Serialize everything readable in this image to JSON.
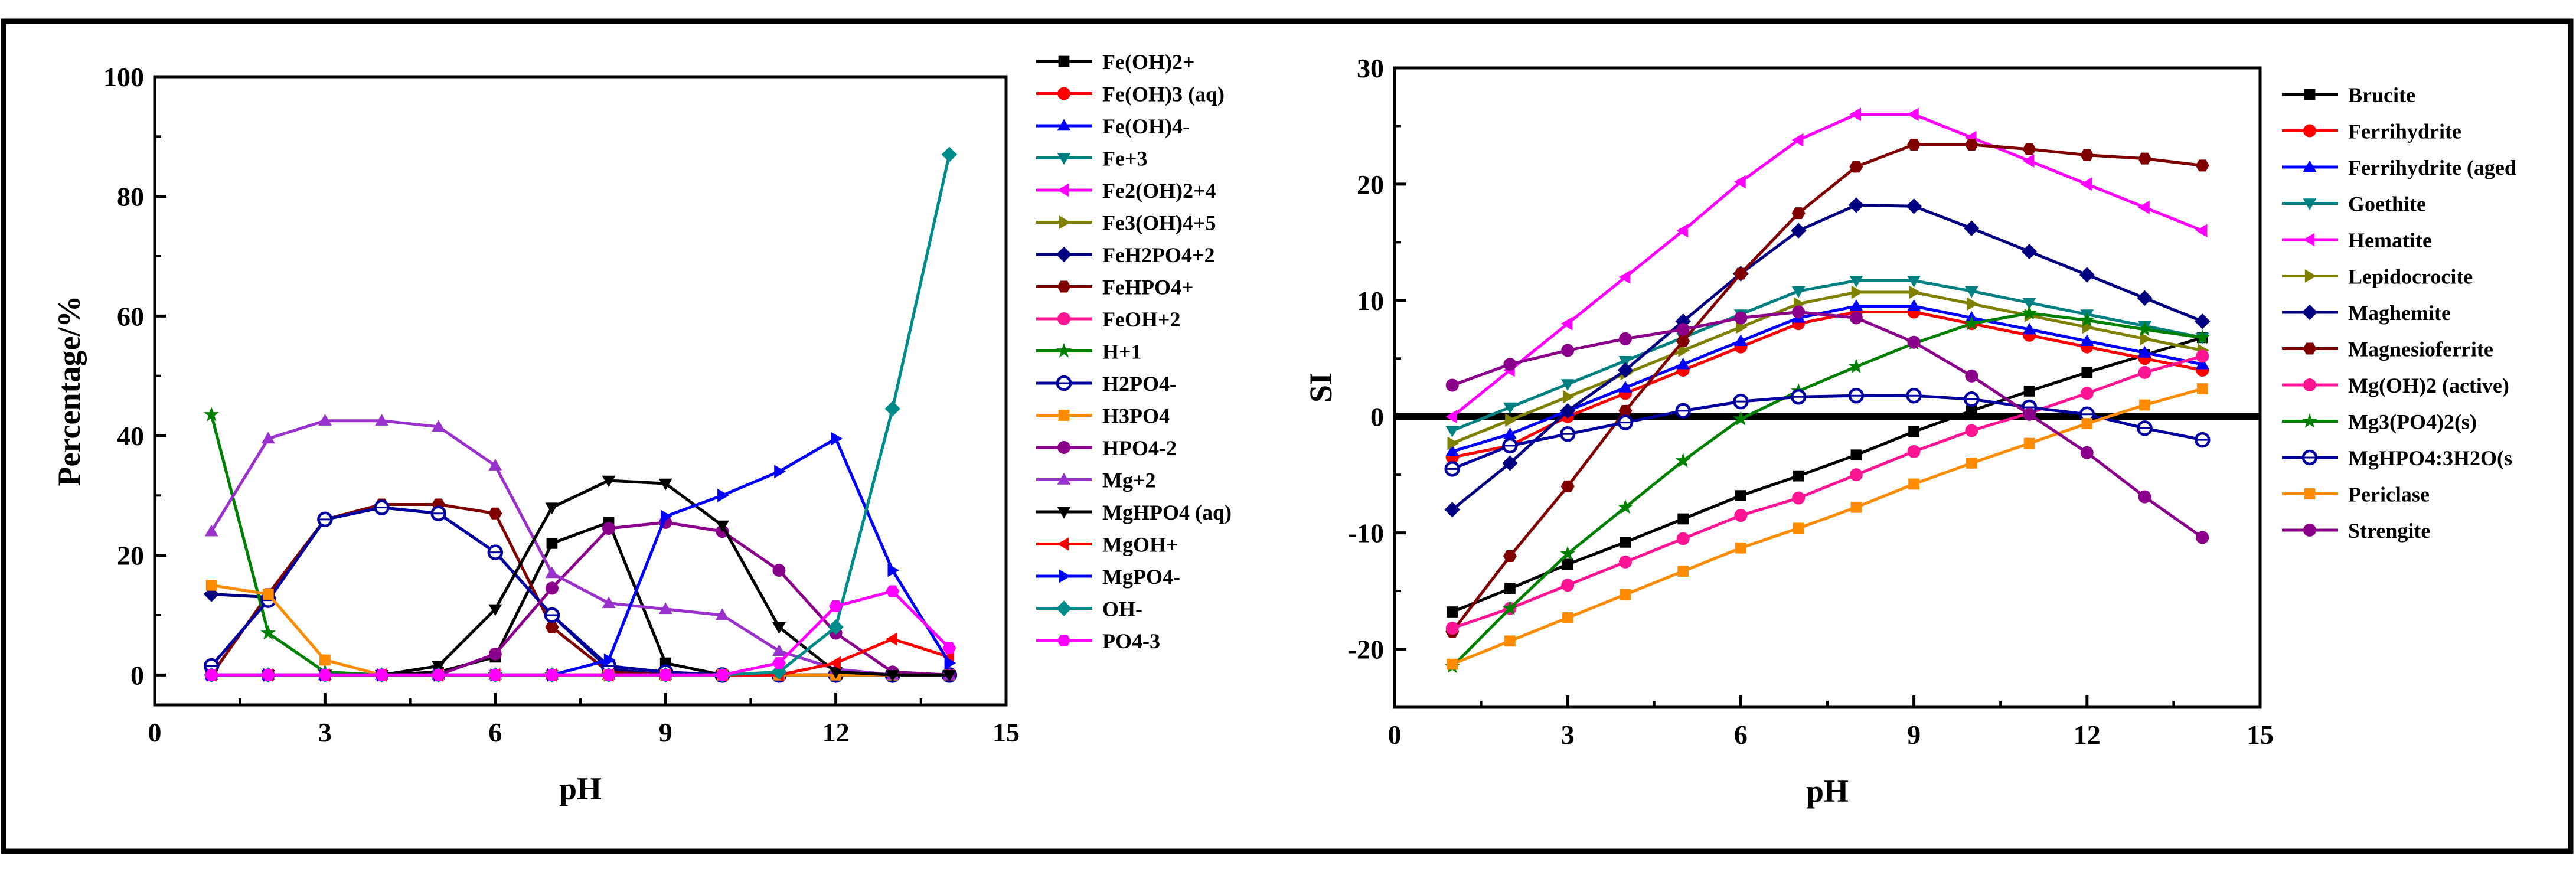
{
  "chart_data": [
    {
      "type": "line",
      "xlabel": "pH",
      "ylabel": "Percentage/%",
      "xlim": [
        0,
        15
      ],
      "ylim": [
        -5,
        100
      ],
      "xticks": [
        "0",
        "3",
        "6",
        "9",
        "12",
        "15"
      ],
      "yticks": [
        "0",
        "20",
        "40",
        "60",
        "80",
        "100"
      ],
      "x": [
        1,
        2,
        3,
        4,
        5,
        6,
        7,
        8,
        9,
        10,
        11,
        12,
        13,
        14
      ],
      "legend_position": "right",
      "series": [
        {
          "name": "Fe(OH)2+",
          "color": "#000000",
          "marker": "square",
          "values": [
            0,
            0,
            0,
            0,
            0.5,
            3,
            22,
            25.5,
            2,
            0,
            0,
            0,
            0,
            0
          ]
        },
        {
          "name": "Fe(OH)3 (aq)",
          "color": "#ff0000",
          "marker": "circle",
          "values": [
            0,
            0,
            0,
            0,
            0,
            0,
            0,
            0,
            0,
            0,
            0,
            0,
            0,
            0
          ]
        },
        {
          "name": "Fe(OH)4-",
          "color": "#0000ff",
          "marker": "triangle-up",
          "values": [
            0,
            0,
            0,
            0,
            0,
            0,
            0,
            0,
            0,
            0,
            0,
            0,
            0,
            0
          ]
        },
        {
          "name": "Fe+3",
          "color": "#008080",
          "marker": "triangle-down",
          "values": [
            0,
            0,
            0,
            0,
            0,
            0,
            0,
            0,
            0,
            0,
            0,
            0,
            0,
            0
          ]
        },
        {
          "name": "Fe2(OH)2+4",
          "color": "#ff00ff",
          "marker": "triangle-left",
          "values": [
            0,
            0,
            0,
            0,
            0,
            0,
            0,
            0,
            0,
            0,
            0,
            0,
            0,
            0
          ]
        },
        {
          "name": "Fe3(OH)4+5",
          "color": "#808000",
          "marker": "triangle-right",
          "values": [
            0,
            0,
            0,
            0,
            0,
            0,
            0,
            0,
            0,
            0,
            0,
            0,
            0,
            0
          ]
        },
        {
          "name": "FeH2PO4+2",
          "color": "#000080",
          "marker": "diamond",
          "values": [
            13.5,
            13,
            26,
            28,
            27,
            20.5,
            10,
            1,
            0,
            0,
            0,
            0,
            0,
            0
          ]
        },
        {
          "name": "FeHPO4+",
          "color": "#800000",
          "marker": "hexagon",
          "values": [
            0,
            13.5,
            26,
            28.5,
            28.5,
            27,
            8,
            0.5,
            0,
            0,
            0,
            0,
            0,
            0
          ]
        },
        {
          "name": "FeOH+2",
          "color": "#ff1493",
          "marker": "circle",
          "values": [
            0,
            0,
            0,
            0,
            0,
            0,
            0,
            0,
            0,
            0,
            0,
            0,
            0,
            0
          ]
        },
        {
          "name": "H+1",
          "color": "#008000",
          "marker": "star",
          "values": [
            43.5,
            7,
            0.5,
            0,
            0,
            0,
            0,
            0,
            0,
            0,
            0,
            0,
            0,
            0
          ]
        },
        {
          "name": "H2PO4-",
          "color": "#0000a0",
          "marker": "circle-open",
          "values": [
            1.5,
            12.5,
            26,
            28,
            27,
            20.5,
            10,
            1.5,
            0.5,
            0,
            0,
            0,
            0,
            0
          ]
        },
        {
          "name": "H3PO4",
          "color": "#ff8c00",
          "marker": "square",
          "values": [
            15,
            13.5,
            2.5,
            0,
            0,
            0,
            0,
            0,
            0,
            0,
            0,
            0,
            0,
            0
          ]
        },
        {
          "name": "HPO4-2",
          "color": "#8b008b",
          "marker": "circle",
          "values": [
            0,
            0,
            0,
            0,
            0,
            3.5,
            14.5,
            24.5,
            25.5,
            24,
            17.5,
            7,
            0.5,
            0
          ]
        },
        {
          "name": "Mg+2",
          "color": "#9932cc",
          "marker": "triangle-up",
          "values": [
            24,
            39.5,
            42.5,
            42.5,
            41.5,
            35,
            17,
            12,
            11,
            10,
            4,
            1,
            0,
            0
          ]
        },
        {
          "name": "MgHPO4 (aq)",
          "color": "#000000",
          "marker": "triangle-down",
          "values": [
            0,
            0,
            0,
            0,
            1.5,
            11,
            28,
            32.5,
            32,
            25,
            8,
            0.5,
            0,
            0
          ]
        },
        {
          "name": "MgOH+",
          "color": "#ff0000",
          "marker": "triangle-left",
          "values": [
            0,
            0,
            0,
            0,
            0,
            0,
            0,
            0,
            0,
            0,
            0,
            2,
            6,
            3
          ]
        },
        {
          "name": "MgPO4-",
          "color": "#0000ff",
          "marker": "triangle-right",
          "values": [
            0,
            0,
            0,
            0,
            0,
            0,
            0,
            2.5,
            26.5,
            30,
            34,
            39.5,
            17.5,
            2
          ]
        },
        {
          "name": "OH-",
          "color": "#008b8b",
          "marker": "diamond",
          "values": [
            0,
            0,
            0,
            0,
            0,
            0,
            0,
            0,
            0,
            0,
            0.5,
            8,
            44.5,
            87
          ]
        },
        {
          "name": "PO4-3",
          "color": "#ff00ff",
          "marker": "hexagon",
          "values": [
            0,
            0,
            0,
            0,
            0,
            0,
            0,
            0,
            0,
            0,
            2,
            11.5,
            14,
            4.5
          ]
        }
      ]
    },
    {
      "type": "line",
      "xlabel": "pH",
      "ylabel": "SI",
      "xlim": [
        0,
        15
      ],
      "ylim": [
        -25,
        30
      ],
      "xticks": [
        "0",
        "3",
        "6",
        "9",
        "12",
        "15"
      ],
      "yticks": [
        "-20",
        "-10",
        "0",
        "10",
        "20",
        "30"
      ],
      "reference_line_y": 0,
      "x": [
        1,
        2,
        3,
        4,
        5,
        6,
        7,
        8,
        9,
        10,
        11,
        12,
        13,
        14
      ],
      "legend_position": "right",
      "series": [
        {
          "name": "Brucite",
          "color": "#000000",
          "marker": "square",
          "values": [
            -16.8,
            -14.8,
            -12.7,
            -10.8,
            -8.8,
            -6.8,
            -5.1,
            -3.3,
            -1.3,
            0.5,
            2.2,
            3.8,
            5.3,
            6.8
          ]
        },
        {
          "name": "Ferrihydrite",
          "color": "#ff0000",
          "marker": "circle",
          "values": [
            -3.5,
            -2.5,
            0,
            2,
            4,
            6,
            8,
            9,
            9,
            8,
            7,
            6,
            5,
            4
          ]
        },
        {
          "name": "Ferrihydrite (aged",
          "color": "#0000ff",
          "marker": "triangle-up",
          "values": [
            -3,
            -1.5,
            0.5,
            2.5,
            4.5,
            6.5,
            8.5,
            9.5,
            9.5,
            8.5,
            7.5,
            6.5,
            5.5,
            4.5
          ]
        },
        {
          "name": "Goethite",
          "color": "#008080",
          "marker": "triangle-down",
          "values": [
            -1.2,
            0.8,
            2.8,
            4.8,
            6.8,
            8.8,
            10.8,
            11.7,
            11.7,
            10.8,
            9.8,
            8.8,
            7.8,
            6.8
          ]
        },
        {
          "name": "Hematite",
          "color": "#ff00ff",
          "marker": "triangle-left",
          "values": [
            0,
            4,
            8,
            12,
            16,
            20.2,
            23.8,
            26,
            26,
            24,
            22,
            20,
            18,
            16
          ]
        },
        {
          "name": "Lepidocrocite",
          "color": "#808000",
          "marker": "triangle-right",
          "values": [
            -2.3,
            -0.3,
            1.7,
            3.7,
            5.7,
            7.7,
            9.7,
            10.7,
            10.7,
            9.7,
            8.7,
            7.7,
            6.7,
            5.7
          ]
        },
        {
          "name": "Maghemite",
          "color": "#000080",
          "marker": "diamond",
          "values": [
            -8,
            -4,
            0.5,
            4,
            8.2,
            12.3,
            16,
            18.2,
            18.1,
            16.2,
            14.2,
            12.2,
            10.2,
            8.2
          ]
        },
        {
          "name": "Magnesioferrite",
          "color": "#800000",
          "marker": "hexagon",
          "values": [
            -18.5,
            -12,
            -6,
            0.5,
            6.5,
            12.3,
            17.5,
            21.5,
            23.4,
            23.4,
            23,
            22.5,
            22.2,
            21.6
          ]
        },
        {
          "name": "Mg(OH)2 (active)",
          "color": "#ff1493",
          "marker": "circle",
          "values": [
            -18.2,
            -16.5,
            -14.5,
            -12.5,
            -10.5,
            -8.5,
            -7,
            -5,
            -3,
            -1.2,
            0.3,
            2,
            3.8,
            5.2
          ]
        },
        {
          "name": "Mg3(PO4)2(s)",
          "color": "#008000",
          "marker": "star",
          "values": [
            -21.5,
            -16.5,
            -11.8,
            -7.8,
            -3.8,
            -0.2,
            2.2,
            4.3,
            6.3,
            8,
            8.9,
            8.3,
            7.5,
            6.8
          ]
        },
        {
          "name": "MgHPO4:3H2O(s",
          "color": "#0000a0",
          "marker": "circle-open",
          "values": [
            -4.5,
            -2.5,
            -1.5,
            -0.5,
            0.5,
            1.3,
            1.7,
            1.8,
            1.8,
            1.5,
            0.8,
            0.2,
            -1,
            -2
          ]
        },
        {
          "name": "Periclase",
          "color": "#ff8c00",
          "marker": "square",
          "values": [
            -21.3,
            -19.3,
            -17.3,
            -15.3,
            -13.3,
            -11.3,
            -9.6,
            -7.8,
            -5.8,
            -4,
            -2.3,
            -0.6,
            1,
            2.4
          ]
        },
        {
          "name": "Strengite",
          "color": "#8b008b",
          "marker": "circle",
          "values": [
            2.7,
            4.5,
            5.7,
            6.7,
            7.5,
            8.5,
            9,
            8.5,
            6.4,
            3.5,
            0.2,
            -3.1,
            -6.9,
            -10.4
          ]
        }
      ]
    }
  ]
}
